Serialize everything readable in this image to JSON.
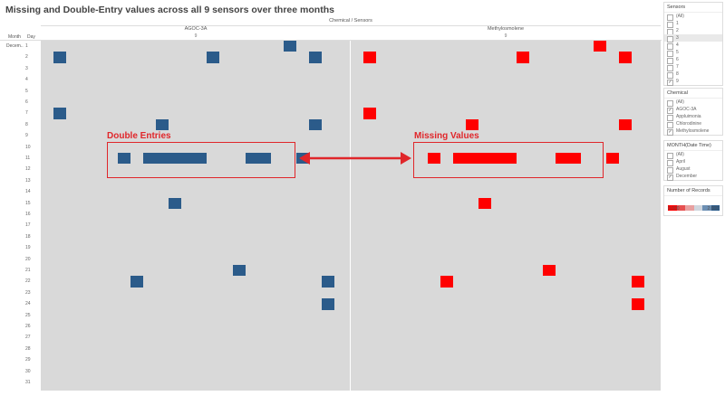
{
  "title": "Missing and Double-Entry values across all 9 sensors over three months",
  "header": {
    "column_title": "Chemical  /  Sensors",
    "chemicals": [
      {
        "name": "AGOC-3A",
        "sensor": "9"
      },
      {
        "name": "Methylosmolene",
        "sensor": "9"
      }
    ],
    "row_headers": {
      "month": "Month",
      "day": "Day",
      "month_value": "Decem.."
    }
  },
  "days": [
    "1",
    "2",
    "3",
    "4",
    "5",
    "6",
    "7",
    "8",
    "9",
    "10",
    "11",
    "12",
    "13",
    "14",
    "15",
    "16",
    "17",
    "18",
    "19",
    "20",
    "21",
    "22",
    "23",
    "24",
    "25",
    "26",
    "27",
    "28",
    "29",
    "30",
    "31"
  ],
  "cells": {
    "agoc": [
      {
        "day": 1,
        "x": 20
      },
      {
        "day": 2,
        "x": 2
      },
      {
        "day": 2,
        "x": 14
      },
      {
        "day": 2,
        "x": 22
      },
      {
        "day": 7,
        "x": 2
      },
      {
        "day": 8,
        "x": 10
      },
      {
        "day": 8,
        "x": 22
      },
      {
        "day": 11,
        "x": 7
      },
      {
        "day": 11,
        "x": 9
      },
      {
        "day": 11,
        "x": 10
      },
      {
        "day": 11,
        "x": 11
      },
      {
        "day": 11,
        "x": 12
      },
      {
        "day": 11,
        "x": 13
      },
      {
        "day": 11,
        "x": 17
      },
      {
        "day": 11,
        "x": 18
      },
      {
        "day": 11,
        "x": 21
      },
      {
        "day": 15,
        "x": 11
      },
      {
        "day": 21,
        "x": 16
      },
      {
        "day": 22,
        "x": 8
      },
      {
        "day": 22,
        "x": 23
      },
      {
        "day": 24,
        "x": 23
      }
    ],
    "methyl": [
      {
        "day": 1,
        "x": 20
      },
      {
        "day": 2,
        "x": 2
      },
      {
        "day": 2,
        "x": 14
      },
      {
        "day": 2,
        "x": 22
      },
      {
        "day": 7,
        "x": 2
      },
      {
        "day": 8,
        "x": 10
      },
      {
        "day": 8,
        "x": 22
      },
      {
        "day": 11,
        "x": 7
      },
      {
        "day": 11,
        "x": 9
      },
      {
        "day": 11,
        "x": 10
      },
      {
        "day": 11,
        "x": 11
      },
      {
        "day": 11,
        "x": 12
      },
      {
        "day": 11,
        "x": 13
      },
      {
        "day": 11,
        "x": 17
      },
      {
        "day": 11,
        "x": 18
      },
      {
        "day": 11,
        "x": 21
      },
      {
        "day": 15,
        "x": 11
      },
      {
        "day": 21,
        "x": 16
      },
      {
        "day": 22,
        "x": 8
      },
      {
        "day": 22,
        "x": 23
      },
      {
        "day": 24,
        "x": 23
      }
    ]
  },
  "colors": {
    "missing": "#ff0000",
    "double": "#2b5b8a",
    "background": "#d9d9d9",
    "annotation": "#e0262a"
  },
  "annotations": {
    "double_label": "Double Entries",
    "missing_label": "Missing Values"
  },
  "filters": {
    "sensors": {
      "title": "Sensors",
      "options": [
        {
          "label": "(All)",
          "checked": false
        },
        {
          "label": "1",
          "checked": false
        },
        {
          "label": "2",
          "checked": false
        },
        {
          "label": "3",
          "checked": false,
          "highlight": true
        },
        {
          "label": "4",
          "checked": false
        },
        {
          "label": "5",
          "checked": false
        },
        {
          "label": "6",
          "checked": false
        },
        {
          "label": "7",
          "checked": false
        },
        {
          "label": "8",
          "checked": false
        },
        {
          "label": "9",
          "checked": true
        }
      ]
    },
    "chemical": {
      "title": "Chemical",
      "options": [
        {
          "label": "(All)",
          "checked": false
        },
        {
          "label": "AGOC-3A",
          "checked": true
        },
        {
          "label": "Appluimonia",
          "checked": false
        },
        {
          "label": "Chlorodinine",
          "checked": false
        },
        {
          "label": "Methylosmolene",
          "checked": true
        }
      ]
    },
    "month": {
      "title": "MONTH(Date Time)",
      "options": [
        {
          "label": "(All)",
          "checked": false
        },
        {
          "label": "April",
          "checked": false
        },
        {
          "label": "August",
          "checked": false
        },
        {
          "label": "December",
          "checked": true
        }
      ]
    }
  },
  "legend": {
    "title": "Number of Records",
    "min": "0.000",
    "max": "2.000",
    "colors": [
      "#ff0000",
      "#e65050",
      "#e8a0a0",
      "#cfd6de",
      "#6c8fb3",
      "#2b5b8a"
    ]
  }
}
